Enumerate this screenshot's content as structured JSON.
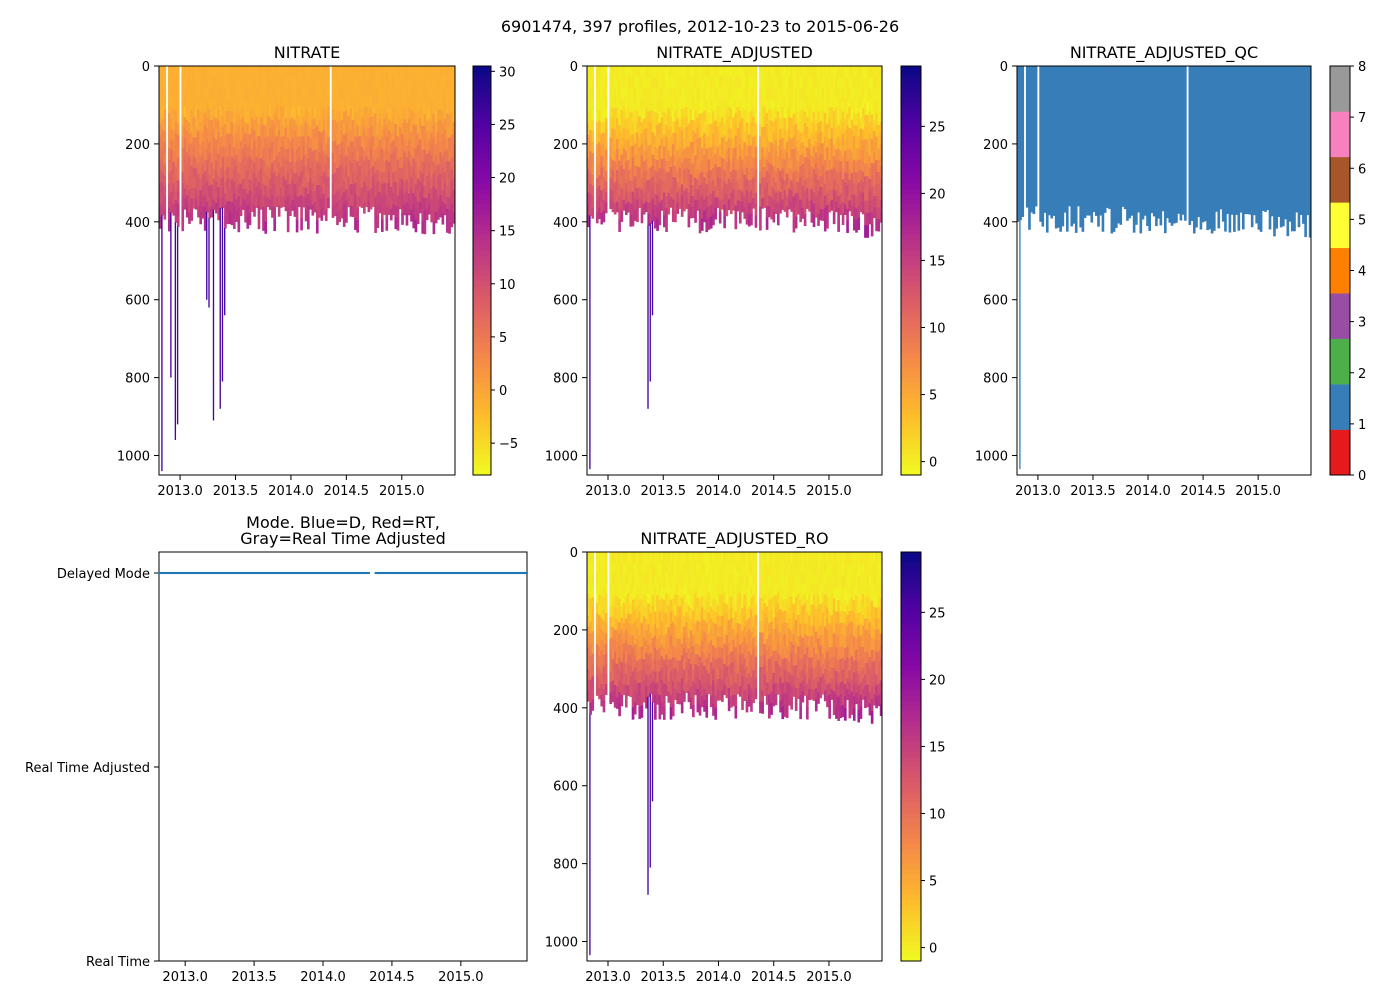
{
  "figure_title": "6901474, 397 profiles, 2012-10-23 to 2015-06-26",
  "chart_data": [
    {
      "id": "nitrate",
      "type": "heatmap",
      "title": "NITRATE",
      "xlabel": "",
      "ylabel": "",
      "xlim": [
        2012.81,
        2015.48
      ],
      "ylim": [
        1050,
        0
      ],
      "xticks": [
        "2013.0",
        "2013.5",
        "2014.0",
        "2014.5",
        "2015.0"
      ],
      "yticks": [
        "0",
        "200",
        "400",
        "600",
        "800",
        "1000"
      ],
      "colormap": "plasma_r",
      "colorbar": {
        "range": [
          -8,
          30.5
        ],
        "ticks": [
          "−5",
          "0",
          "5",
          "10",
          "15",
          "20",
          "25",
          "30"
        ]
      },
      "gap_profiles_x": [
        2012.88,
        2013.01,
        2014.36
      ],
      "deep_profiles": [
        {
          "x": 2012.83,
          "depth": 1040
        },
        {
          "x": 2012.92,
          "depth": 800
        },
        {
          "x": 2012.95,
          "depth": 960
        },
        {
          "x": 2012.97,
          "depth": 920
        },
        {
          "x": 2013.23,
          "depth": 600
        },
        {
          "x": 2013.25,
          "depth": 620
        },
        {
          "x": 2013.3,
          "depth": 910
        },
        {
          "x": 2013.35,
          "depth": 880
        },
        {
          "x": 2013.38,
          "depth": 810
        },
        {
          "x": 2013.4,
          "depth": 640
        }
      ]
    },
    {
      "id": "nitrate_adjusted",
      "type": "heatmap",
      "title": "NITRATE_ADJUSTED",
      "xlabel": "",
      "ylabel": "",
      "xlim": [
        2012.81,
        2015.48
      ],
      "ylim": [
        1050,
        0
      ],
      "xticks": [
        "2013.0",
        "2013.5",
        "2014.0",
        "2014.5",
        "2015.0"
      ],
      "yticks": [
        "0",
        "200",
        "400",
        "600",
        "800",
        "1000"
      ],
      "colormap": "plasma_r",
      "colorbar": {
        "range": [
          -1,
          29.5
        ],
        "ticks": [
          "0",
          "5",
          "10",
          "15",
          "20",
          "25"
        ]
      },
      "gap_profiles_x": [
        2012.88,
        2013.01,
        2014.36
      ],
      "deep_profiles": [
        {
          "x": 2012.83,
          "depth": 1035
        },
        {
          "x": 2013.35,
          "depth": 880
        },
        {
          "x": 2013.38,
          "depth": 810
        },
        {
          "x": 2013.4,
          "depth": 640
        }
      ]
    },
    {
      "id": "nitrate_adjusted_qc",
      "type": "heatmap",
      "title": "NITRATE_ADJUSTED_QC",
      "xlabel": "",
      "ylabel": "",
      "xlim": [
        2012.81,
        2015.48
      ],
      "ylim": [
        1050,
        0
      ],
      "xticks": [
        "2013.0",
        "2013.5",
        "2014.0",
        "2014.5",
        "2015.0"
      ],
      "yticks": [
        "0",
        "200",
        "400",
        "600",
        "800",
        "1000"
      ],
      "colormap": "Set1 (QC flags)",
      "qc_value_shown": 1,
      "colorbar": {
        "range": [
          0,
          8
        ],
        "ticks": [
          "0",
          "1",
          "2",
          "3",
          "4",
          "5",
          "6",
          "7",
          "8"
        ],
        "segment_colors": [
          "#e41a1c",
          "#377eb8",
          "#4daf4a",
          "#984ea3",
          "#ff7f00",
          "#ffff33",
          "#a65628",
          "#f781bf",
          "#999999"
        ]
      },
      "gap_profiles_x": [
        2012.88,
        2013.01,
        2014.36
      ],
      "deep_profiles": [
        {
          "x": 2012.83,
          "depth": 1035
        }
      ]
    },
    {
      "id": "mode",
      "type": "scatter",
      "title": "Mode. Blue=D, Red=RT,\nGray=Real Time Adjusted",
      "xlabel": "",
      "ylabel": "",
      "xlim": [
        2012.81,
        2015.48
      ],
      "xticks": [
        "2013.0",
        "2013.5",
        "2014.0",
        "2014.5",
        "2015.0"
      ],
      "categories": [
        "Real Time",
        "Real Time Adjusted",
        "Delayed Mode"
      ],
      "series": [
        {
          "name": "Delayed Mode",
          "color": "#1f77b4",
          "x_range": [
            2012.81,
            2015.48
          ],
          "value": "Delayed Mode",
          "gap": [
            2014.34,
            2014.38
          ]
        }
      ]
    },
    {
      "id": "nitrate_adjusted_ro",
      "type": "heatmap",
      "title": "NITRATE_ADJUSTED_RO",
      "xlabel": "",
      "ylabel": "",
      "xlim": [
        2012.81,
        2015.48
      ],
      "ylim": [
        1050,
        0
      ],
      "xticks": [
        "2013.0",
        "2013.5",
        "2014.0",
        "2014.5",
        "2015.0"
      ],
      "yticks": [
        "0",
        "200",
        "400",
        "600",
        "800",
        "1000"
      ],
      "colormap": "plasma_r",
      "colorbar": {
        "range": [
          -1,
          29.5
        ],
        "ticks": [
          "0",
          "5",
          "10",
          "15",
          "20",
          "25"
        ]
      },
      "gap_profiles_x": [
        2012.88,
        2013.01,
        2014.36
      ],
      "deep_profiles": [
        {
          "x": 2012.83,
          "depth": 1035
        },
        {
          "x": 2013.35,
          "depth": 880
        },
        {
          "x": 2013.38,
          "depth": 810
        },
        {
          "x": 2013.4,
          "depth": 640
        }
      ]
    }
  ]
}
